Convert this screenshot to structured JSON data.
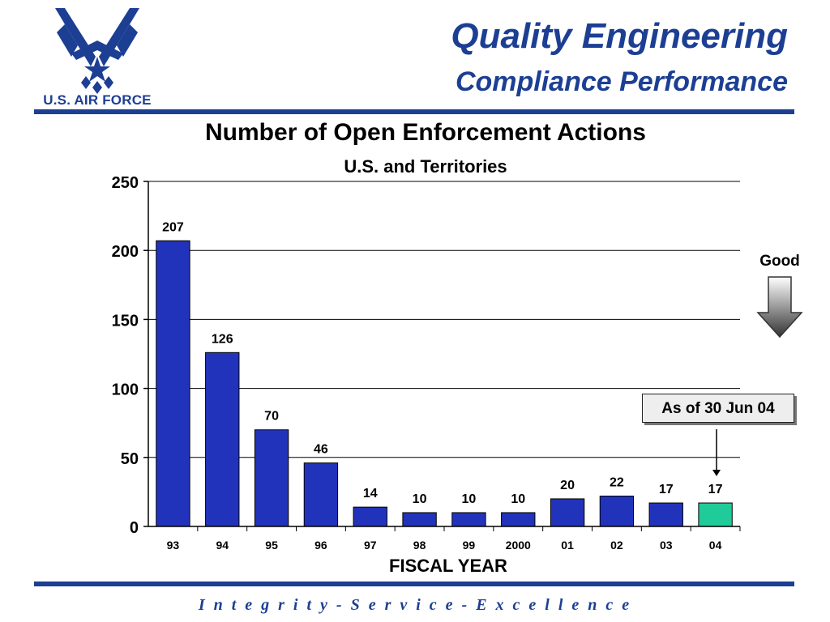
{
  "header": {
    "title": "Quality Engineering",
    "subtitle": "Compliance Performance",
    "logo_text": "U.S. AIR FORCE"
  },
  "footer": {
    "motto": "I n t e g r i t y  -  S e r v i c e  -  E x c e l l e n c e"
  },
  "annotations": {
    "good_label": "Good",
    "as_of": "As of 30 Jun 04"
  },
  "colors": {
    "brand_blue": "#1c3f94",
    "bar": "#2233bb",
    "highlight_bar": "#1fcc99"
  },
  "chart_data": {
    "type": "bar",
    "title": "Number of Open Enforcement Actions",
    "subtitle": "U.S. and Territories",
    "xlabel": "FISCAL YEAR",
    "ylabel": "",
    "ylim": [
      0,
      250
    ],
    "yticks": [
      0,
      50,
      100,
      150,
      200,
      250
    ],
    "grid": true,
    "categories": [
      "93",
      "94",
      "95",
      "96",
      "97",
      "98",
      "99",
      "2000",
      "01",
      "02",
      "03",
      "04"
    ],
    "values": [
      207,
      126,
      70,
      46,
      14,
      10,
      10,
      10,
      20,
      22,
      17,
      17
    ],
    "highlight_category": "04"
  }
}
